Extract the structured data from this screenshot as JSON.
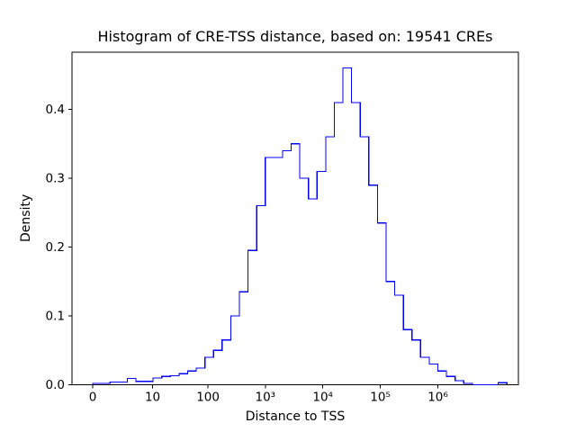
{
  "figure": {
    "title": "Histogram of CRE-TSS distance, based on: 19541 CREs",
    "xlabel": "Distance to TSS",
    "ylabel": "Density"
  },
  "chart_data": {
    "type": "bar",
    "subtype": "step-histogram",
    "title": "Histogram of CRE-TSS distance, based on: 19541 CREs",
    "xlabel": "Distance to TSS",
    "ylabel": "Density",
    "n_cres": 19541,
    "line_color": "#0000ff",
    "background": "#ffffff",
    "x_transform": "log10(distance+1)",
    "legend": null,
    "grid": false,
    "axes": {
      "xlim_log": [
        -0.36,
        7.4
      ],
      "ylim": [
        0,
        0.483
      ]
    },
    "x_ticks": [
      {
        "value": 0,
        "label": "0"
      },
      {
        "value": 10,
        "label": "10"
      },
      {
        "value": 100,
        "label": "100"
      },
      {
        "value": 1000,
        "label": "10³"
      },
      {
        "value": 10000,
        "label": "10⁴"
      },
      {
        "value": 100000,
        "label": "10⁵"
      },
      {
        "value": 1000000,
        "label": "10⁶"
      }
    ],
    "y_ticks": [
      {
        "value": 0.0,
        "label": "0.0"
      },
      {
        "value": 0.1,
        "label": "0.1"
      },
      {
        "value": 0.2,
        "label": "0.2"
      },
      {
        "value": 0.3,
        "label": "0.3"
      },
      {
        "value": 0.4,
        "label": "0.4"
      }
    ],
    "bin_edges_log10": [
      0.0,
      0.15,
      0.3,
      0.45,
      0.6,
      0.75,
      0.9,
      1.05,
      1.2,
      1.35,
      1.5,
      1.65,
      1.8,
      1.95,
      2.1,
      2.25,
      2.4,
      2.55,
      2.7,
      2.85,
      3.0,
      3.15,
      3.3,
      3.45,
      3.6,
      3.75,
      3.9,
      4.05,
      4.2,
      4.35,
      4.5,
      4.65,
      4.8,
      4.95,
      5.1,
      5.25,
      5.4,
      5.55,
      5.7,
      5.85,
      6.0,
      6.15,
      6.3,
      6.45,
      6.6,
      6.75,
      6.9,
      7.05,
      7.2
    ],
    "densities": [
      0.002,
      0.002,
      0.004,
      0.004,
      0.009,
      0.005,
      0.005,
      0.01,
      0.012,
      0.013,
      0.016,
      0.02,
      0.024,
      0.04,
      0.05,
      0.065,
      0.1,
      0.135,
      0.195,
      0.26,
      0.33,
      0.33,
      0.34,
      0.35,
      0.3,
      0.27,
      0.31,
      0.36,
      0.41,
      0.46,
      0.41,
      0.36,
      0.29,
      0.235,
      0.15,
      0.13,
      0.08,
      0.065,
      0.04,
      0.03,
      0.02,
      0.012,
      0.006,
      0.002,
      0.0,
      0.0,
      0.0,
      0.003
    ]
  }
}
